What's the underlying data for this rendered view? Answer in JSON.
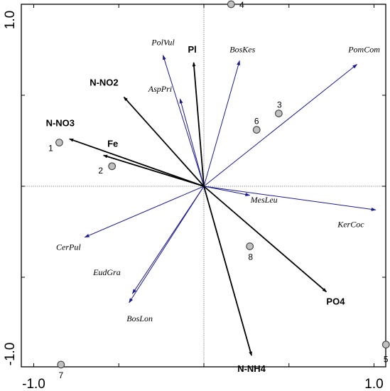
{
  "chart_data": {
    "type": "scatter",
    "subtype": "rda-biplot",
    "title": "",
    "xlabel": "",
    "ylabel": "",
    "xlim": [
      -1.0,
      1.0
    ],
    "ylim": [
      -1.0,
      1.0
    ],
    "x_tick_labels": [
      {
        "value": -1.0,
        "label": "-1.0"
      },
      {
        "value": 1.0,
        "label": "1.0"
      }
    ],
    "y_tick_labels": [
      {
        "value": 1.0,
        "label": "1.0"
      },
      {
        "value": -1.0,
        "label": "-1.0"
      }
    ],
    "minor_ticks": [
      -0.5,
      0.5
    ],
    "zero_lines": "dotted",
    "grid": false,
    "env_vectors": [
      {
        "name": "Pl",
        "x": -0.06,
        "y": 0.68
      },
      {
        "name": "N-NO2",
        "x": -0.47,
        "y": 0.49
      },
      {
        "name": "N-NO3",
        "x": -0.79,
        "y": 0.26
      },
      {
        "name": "Fe",
        "x": -0.59,
        "y": 0.17
      },
      {
        "name": "PO4",
        "x": 0.72,
        "y": -0.58
      },
      {
        "name": "N-NH4",
        "x": 0.28,
        "y": -0.93
      }
    ],
    "species_vectors": [
      {
        "name": "PolVul",
        "x": -0.24,
        "y": 0.72
      },
      {
        "name": "BosKes",
        "x": 0.21,
        "y": 0.69
      },
      {
        "name": "PomCom",
        "x": 0.9,
        "y": 0.67
      },
      {
        "name": "AspPri",
        "x": -0.14,
        "y": 0.48
      },
      {
        "name": "MesLeu",
        "x": 0.27,
        "y": -0.05
      },
      {
        "name": "KerCoc",
        "x": 1.01,
        "y": -0.13
      },
      {
        "name": "CerPul",
        "x": -0.7,
        "y": -0.28
      },
      {
        "name": "EudGra",
        "x": -0.42,
        "y": -0.59
      },
      {
        "name": "BosLon",
        "x": -0.44,
        "y": -0.64
      }
    ],
    "sites": [
      {
        "name": "1",
        "x": -0.85,
        "y": 0.24
      },
      {
        "name": "2",
        "x": -0.54,
        "y": 0.11
      },
      {
        "name": "3",
        "x": 0.44,
        "y": 0.4
      },
      {
        "name": "4",
        "x": 0.16,
        "y": 1.0
      },
      {
        "name": "5",
        "x": 1.07,
        "y": -0.87
      },
      {
        "name": "6",
        "x": 0.31,
        "y": 0.31
      },
      {
        "name": "7",
        "x": -0.84,
        "y": -0.98
      },
      {
        "name": "8",
        "x": 0.27,
        "y": -0.33
      }
    ],
    "colors": {
      "env_arrow": "#000000",
      "species_arrow": "#1c1c8c",
      "site_fill": "#c0c0c0",
      "site_stroke": "#404040",
      "axis": "#000000"
    }
  }
}
